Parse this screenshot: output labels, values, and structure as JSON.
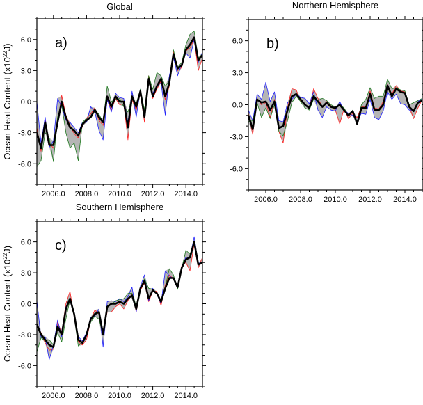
{
  "chart_data": [
    {
      "type": "line",
      "panel_label": "a)",
      "title": "Global",
      "xlabel": "",
      "ylabel": "Ocean Heat Content (x10",
      "ylabel_exp": "22",
      "ylabel_unit": "J)",
      "xlim": [
        2005,
        2015
      ],
      "ylim": [
        -8,
        8
      ],
      "xticks": [
        "2006.0",
        "2008.0",
        "2010.0",
        "2012.0",
        "2014.0"
      ],
      "yticks": [
        "6.0",
        "3.0",
        "0.0",
        "-3.0",
        "-6.0"
      ],
      "grid": false,
      "x_start": 2005.0,
      "x_step": 0.25,
      "shading": "gray envelope between series",
      "series": [
        {
          "name": "red",
          "color": "#ff2020",
          "values": [
            -2.5,
            -4.8,
            -1.8,
            -4,
            -4.5,
            -2.2,
            0.6,
            -1.3,
            -2.3,
            -3.1,
            -3.5,
            -2.4,
            -1.6,
            -1.2,
            -0.6,
            -1.8,
            -2.3,
            0.2,
            -0.8,
            0.3,
            -0.3,
            -0.2,
            -3.7,
            0.2,
            -0.8,
            0.8,
            -2,
            2.5,
            0.3,
            1.2,
            2,
            0.2,
            1.5,
            4.9,
            3,
            3.3,
            4.9,
            5.2,
            6,
            3,
            4.2
          ]
        },
        {
          "name": "blue",
          "color": "#2020ff",
          "values": [
            0,
            -4,
            -1.5,
            -4.4,
            -3.8,
            0.3,
            -0.5,
            -1.8,
            -2,
            -2.5,
            -3,
            -2,
            -2,
            -0.5,
            -1,
            -2.8,
            -3.7,
            0.2,
            -1,
            0.8,
            0.4,
            0.3,
            -2,
            1,
            -1.5,
            1.2,
            -1.2,
            1.9,
            0.8,
            1.5,
            1.8,
            -1.3,
            2.5,
            4.3,
            2.5,
            3.7,
            4.7,
            4.2,
            6,
            3.8,
            4.8
          ]
        },
        {
          "name": "green",
          "color": "#1f7a1f",
          "values": [
            -6.3,
            -5.7,
            -3,
            -3.5,
            -5.8,
            -1.5,
            -0.3,
            -3,
            -4.5,
            -4,
            -5.7,
            -2,
            -1.6,
            -1.5,
            -0.9,
            -1.2,
            -2,
            1.5,
            0,
            0.2,
            0.3,
            -0.5,
            -1,
            0.3,
            -0.2,
            1.2,
            -0.8,
            2.5,
            1.2,
            2.8,
            2.5,
            1.5,
            2,
            5,
            3.3,
            3.8,
            5.5,
            6.5,
            6.8,
            4.2,
            4.6
          ]
        },
        {
          "name": "mean",
          "color": "#000000",
          "values": [
            -3,
            -4.5,
            -2,
            -4.2,
            -4.2,
            -2,
            0,
            -1.5,
            -2.5,
            -2.8,
            -3.3,
            -2.2,
            -1.8,
            -1.5,
            -0.8,
            -1.5,
            -2,
            0.5,
            -0.5,
            0.5,
            0,
            0,
            -2.5,
            0.5,
            -0.5,
            1,
            -1.5,
            2.2,
            0.5,
            1.5,
            2.2,
            0.5,
            1.8,
            4.6,
            3.2,
            3.5,
            5,
            5.5,
            6.2,
            4,
            4.5
          ]
        }
      ]
    },
    {
      "type": "line",
      "panel_label": "b)",
      "title": "Northern Hemisphere",
      "xlabel": "",
      "ylabel": "",
      "xlim": [
        2005,
        2015
      ],
      "ylim": [
        -8,
        8
      ],
      "xticks": [
        "2006.0",
        "2008.0",
        "2010.0",
        "2012.0",
        "2014.0"
      ],
      "yticks": [
        "6.0",
        "3.0",
        "0.0",
        "-3.0",
        "-6.0"
      ],
      "grid": false,
      "x_start": 2005.0,
      "x_step": 0.25,
      "shading": "gray envelope between series",
      "series": [
        {
          "name": "red",
          "color": "#ff2020",
          "values": [
            -0.8,
            -2.8,
            0.6,
            0,
            0.2,
            -1.2,
            0.5,
            -2.5,
            -3.6,
            -0.3,
            1.5,
            1.4,
            0.3,
            0.1,
            -0.4,
            1.5,
            0.6,
            -0.2,
            0.3,
            -0.1,
            -0.5,
            -1.8,
            -0.4,
            -1.3,
            -0.8,
            -1.2,
            -0.2,
            -0.2,
            1.3,
            -0.3,
            -0.4,
            0.3,
            1.9,
            1,
            1.8,
            1.3,
            1.2,
            -0.2,
            -1.3,
            -0.3,
            0.5
          ]
        },
        {
          "name": "blue",
          "color": "#2020ff",
          "values": [
            -0.5,
            -1.5,
            1,
            0.5,
            2.1,
            0.3,
            1.2,
            -1.5,
            -1.6,
            0.2,
            0.5,
            1,
            0.7,
            0.6,
            0.1,
            1.2,
            -0.5,
            -1.2,
            -0.2,
            -0.5,
            -0.6,
            0.3,
            -0.5,
            -0.8,
            -1,
            -1.5,
            -0.8,
            -0.9,
            0.5,
            -1.2,
            -1.4,
            -0.6,
            1.2,
            0.5,
            1,
            0.1,
            0,
            -0.5,
            -0.5,
            0.3,
            0.6
          ]
        },
        {
          "name": "green",
          "color": "#1f7a1f",
          "values": [
            -1.6,
            -1.5,
            0.2,
            -1.2,
            -0.3,
            -1.3,
            0,
            -2.5,
            -2.9,
            -1.5,
            0.2,
            0.8,
            0.3,
            -0.3,
            -0.5,
            0.5,
            0.4,
            0.6,
            0.4,
            0,
            -0.2,
            0,
            -0.3,
            -1,
            -0.5,
            -1.6,
            0,
            0.5,
            1.6,
            0.6,
            0.8,
            0.8,
            2.4,
            1.5,
            1.6,
            1.4,
            1.3,
            0,
            0.2,
            0.4,
            0.6
          ]
        },
        {
          "name": "mean",
          "color": "#000000",
          "values": [
            -1,
            -2.3,
            0.5,
            0.2,
            0.3,
            -0.5,
            0.3,
            -2.2,
            -2,
            -0.5,
            0.8,
            1,
            0.5,
            0,
            -0.3,
            0.8,
            0.3,
            -0.2,
            0.2,
            -0.2,
            -0.3,
            0,
            -0.5,
            -1,
            -0.6,
            -1.8,
            -0.3,
            -0.3,
            1,
            -0.5,
            -0.5,
            0,
            1.8,
            0.8,
            1.5,
            1.2,
            1.1,
            -0.2,
            -0.6,
            0.2,
            0.4
          ]
        }
      ]
    },
    {
      "type": "line",
      "panel_label": "c)",
      "title": "Southern Hemisphere",
      "xlabel": "",
      "ylabel": "Ocean Heat Content (x10",
      "ylabel_exp": "22",
      "ylabel_unit": "J)",
      "xlim": [
        2005,
        2015
      ],
      "ylim": [
        -8,
        8
      ],
      "xticks": [
        "2006.0",
        "2008.0",
        "2010.0",
        "2012.0",
        "2014.0"
      ],
      "yticks": [
        "6.0",
        "3.0",
        "0.0",
        "-3.0",
        "-6.0"
      ],
      "grid": false,
      "x_start": 2005.0,
      "x_step": 0.25,
      "shading": "gray envelope between series",
      "series": [
        {
          "name": "red",
          "color": "#ff2020",
          "values": [
            -2.2,
            -2.8,
            -3.8,
            -4.5,
            -4.4,
            -1.8,
            -2.8,
            0,
            1.2,
            -1.3,
            -3.7,
            -4,
            -3.5,
            -1.6,
            -0.6,
            -1,
            -2.8,
            -0.8,
            -0.8,
            -0.3,
            0,
            -0.5,
            0.3,
            1,
            -0.8,
            1.3,
            2,
            0.2,
            1.2,
            1.2,
            -0.2,
            1.8,
            2.8,
            2.4,
            1.7,
            3.7,
            4,
            3.2,
            5.8,
            3.5,
            4.5
          ]
        },
        {
          "name": "blue",
          "color": "#2020ff",
          "values": [
            0.3,
            -3.3,
            -3.2,
            -5.4,
            -4,
            -1.6,
            -3.2,
            -0.3,
            0.2,
            -0.8,
            -3.2,
            -3.6,
            -2.8,
            -1.3,
            -1.2,
            -0.5,
            -4.2,
            0.2,
            0.3,
            0.2,
            0.5,
            0.2,
            0.7,
            1.6,
            -0.8,
            1.7,
            2.8,
            0.3,
            1.5,
            0.9,
            0,
            3.2,
            2.7,
            2.4,
            1.5,
            3.6,
            4.5,
            4.5,
            6.5,
            3.9,
            4.1
          ]
        },
        {
          "name": "green",
          "color": "#1f7a1f",
          "values": [
            -4.7,
            -3.3,
            -3.6,
            -3.5,
            -4,
            -2.8,
            -3.7,
            -1.5,
            0.4,
            -1.2,
            -4.1,
            -3.7,
            -3,
            -1.8,
            -1.2,
            -1.5,
            -3,
            -0.2,
            -0.1,
            0.3,
            0.4,
            0.5,
            1,
            1,
            -0.2,
            1.5,
            2.4,
            1.5,
            1.4,
            1,
            0.3,
            1.6,
            3.4,
            2.8,
            1.4,
            3.4,
            5.2,
            4.8,
            6,
            3.8,
            4
          ]
        },
        {
          "name": "mean",
          "color": "#000000",
          "values": [
            -2,
            -3,
            -3.5,
            -4,
            -4.2,
            -2.2,
            -3,
            -0.5,
            0.5,
            -1,
            -3.5,
            -3.8,
            -3,
            -1.5,
            -1,
            -0.8,
            -3,
            -0.3,
            0,
            0,
            0.2,
            0,
            0.5,
            0.8,
            -0.5,
            1.5,
            2.2,
            0.5,
            1.3,
            1,
            0.2,
            1.5,
            2.5,
            2.5,
            1.6,
            3.5,
            4.3,
            4.5,
            6,
            3.8,
            4
          ]
        }
      ]
    }
  ]
}
